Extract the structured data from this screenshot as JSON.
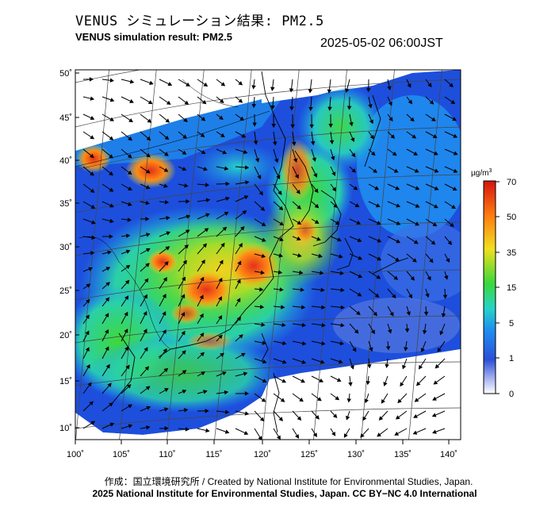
{
  "title_jp": "VENUS シミュレーション結果: PM2.5",
  "title_en": "VENUS simulation result: PM2.5",
  "timestamp": "2025-05-02 06:00JST",
  "colorbar": {
    "unit_prefix": "µg/m",
    "unit_sup": "3",
    "ticks": [
      "0",
      "1",
      "5",
      "15",
      "35",
      "50",
      "70"
    ],
    "colors": [
      "#ffffff",
      "#2b4fd8",
      "#1e8ff0",
      "#27d3c8",
      "#3cd83a",
      "#f0e020",
      "#ff7a10",
      "#e01a10"
    ]
  },
  "map": {
    "lat_labels": [
      "50˚",
      "45˚",
      "40˚",
      "35˚",
      "30˚",
      "25˚",
      "20˚",
      "15˚",
      "10˚"
    ],
    "lon_labels": [
      "100˚",
      "105˚",
      "110˚",
      "115˚",
      "120˚",
      "125˚",
      "130˚",
      "135˚",
      "140˚"
    ],
    "colors": {
      "background": "#1d4fdc",
      "no_data": "#ffffff",
      "outline": "#000000"
    }
  },
  "credit_line1": "作成：国立環境研究所 / Created by National Institute for Environmental Studies, Japan.",
  "credit_line2": "2025 National Institute for Environmental Studies, Japan. CC BY−NC 4.0 International"
}
